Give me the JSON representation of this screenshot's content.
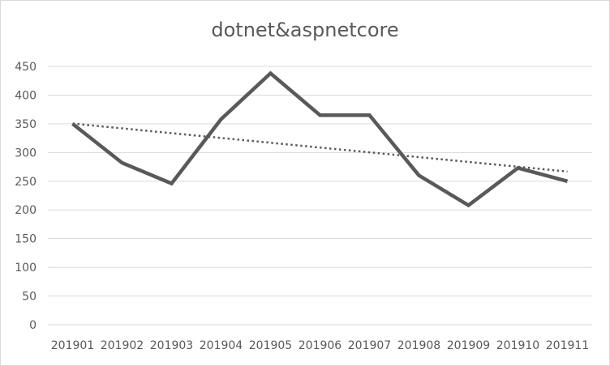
{
  "chart_data": {
    "type": "line",
    "title": "dotnet&aspnetcore",
    "categories": [
      "201901",
      "201902",
      "201903",
      "201904",
      "201905",
      "201906",
      "201907",
      "201908",
      "201909",
      "201910",
      "201911"
    ],
    "series": [
      {
        "values": [
          350,
          282,
          246,
          358,
          438,
          365,
          365,
          260,
          208,
          273,
          250
        ],
        "color": "#595959"
      }
    ],
    "trendline": {
      "type": "linear",
      "style": "dotted",
      "color": "#595959"
    },
    "ylim": [
      0,
      450
    ],
    "yticks": [
      0,
      50,
      100,
      150,
      200,
      250,
      300,
      350,
      400,
      450
    ],
    "grid": true,
    "legend": "none",
    "xlabel": "",
    "ylabel": ""
  }
}
